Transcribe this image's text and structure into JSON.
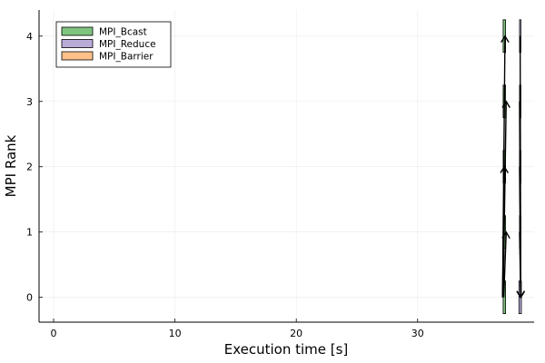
{
  "chart_data": {
    "type": "bar",
    "orientation": "horizontal",
    "title": "",
    "xlabel": "Execution time [s]",
    "ylabel": "MPI Rank",
    "xlim": [
      -1.2,
      39.6
    ],
    "ylim": [
      -0.38,
      4.4
    ],
    "xticks": [
      0,
      10,
      20,
      30
    ],
    "yticks": [
      0,
      1,
      2,
      3,
      4
    ],
    "grid": true,
    "legend_position": "top-left",
    "series": [
      {
        "name": "MPI_Bcast",
        "color": "#7fc47f",
        "bars": [
          {
            "rank": 0,
            "start": 37.05,
            "end": 37.25
          },
          {
            "rank": 1,
            "start": 37.05,
            "end": 37.25
          },
          {
            "rank": 2,
            "start": 37.05,
            "end": 37.25
          },
          {
            "rank": 3,
            "start": 37.05,
            "end": 37.25
          },
          {
            "rank": 4,
            "start": 37.05,
            "end": 37.25
          }
        ]
      },
      {
        "name": "MPI_Reduce",
        "color": "#b9abd8",
        "bars": [
          {
            "rank": 0,
            "start": 38.35,
            "end": 38.55
          },
          {
            "rank": 1,
            "start": 38.4,
            "end": 38.45
          },
          {
            "rank": 2,
            "start": 38.4,
            "end": 38.45
          },
          {
            "rank": 3,
            "start": 38.4,
            "end": 38.45
          },
          {
            "rank": 4,
            "start": 38.4,
            "end": 38.45
          }
        ]
      },
      {
        "name": "MPI_Barrier",
        "color": "#ffc08a",
        "bars": []
      }
    ],
    "messages": [
      {
        "from_rank": 0,
        "to_rank": 4,
        "t_send": 37.0,
        "t_recv": 37.2
      },
      {
        "from_rank": 0,
        "to_rank": 3,
        "t_send": 37.05,
        "t_recv": 37.3
      },
      {
        "from_rank": 0,
        "to_rank": 2,
        "t_send": 37.0,
        "t_recv": 37.15
      },
      {
        "from_rank": 0,
        "to_rank": 1,
        "t_send": 37.1,
        "t_recv": 37.3
      },
      {
        "from_rank": 4,
        "to_rank": 0,
        "t_send": 38.45,
        "t_recv": 38.5
      },
      {
        "from_rank": 3,
        "to_rank": 0,
        "t_send": 38.4,
        "t_recv": 38.5
      },
      {
        "from_rank": 2,
        "to_rank": 0,
        "t_send": 38.4,
        "t_recv": 38.5
      },
      {
        "from_rank": 1,
        "to_rank": 0,
        "t_send": 38.4,
        "t_recv": 38.5
      }
    ]
  }
}
